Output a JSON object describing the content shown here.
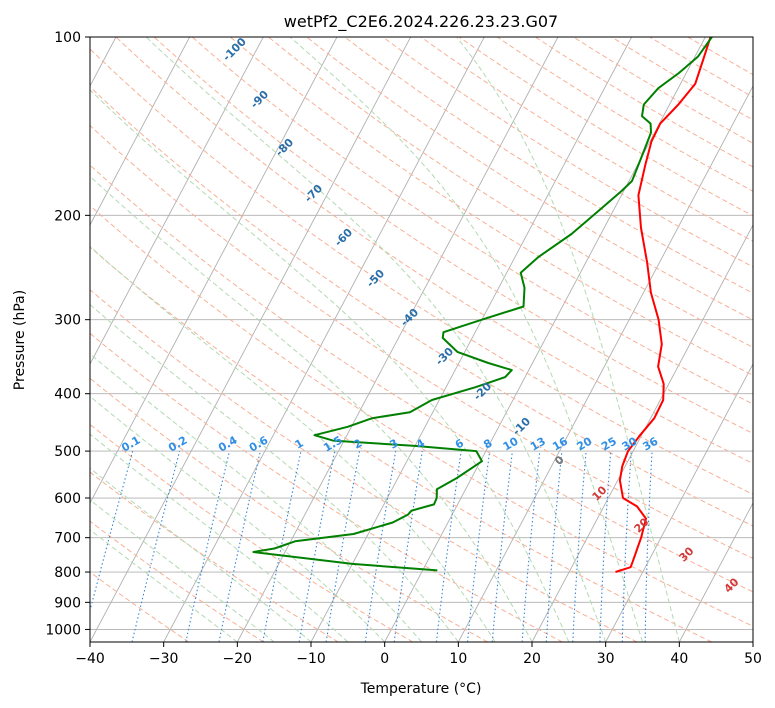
{
  "chart_data": {
    "type": "line",
    "title": "wetPf2_C2E6.2024.226.23.23.G07",
    "xlabel": "Temperature (°C)",
    "ylabel": "Pressure (hPa)",
    "xlim": [
      -40,
      50
    ],
    "ylim": [
      1050,
      100
    ],
    "y_scale": "log",
    "x_ticks": [
      "−40",
      "−30",
      "−20",
      "−10",
      "0",
      "10",
      "20",
      "30",
      "40",
      "50"
    ],
    "y_ticks": [
      "100",
      "200",
      "300",
      "400",
      "500",
      "600",
      "700",
      "800",
      "900",
      "1000"
    ],
    "grid": true,
    "series": [
      {
        "role": "temperature",
        "color": "#ff0000",
        "points": [
          {
            "p": 800,
            "t": 26.3
          },
          {
            "p": 785,
            "t": 28.0
          },
          {
            "p": 770,
            "t": 27.9
          },
          {
            "p": 700,
            "t": 27.3
          },
          {
            "p": 650,
            "t": 26.6
          },
          {
            "p": 620,
            "t": 24.5
          },
          {
            "p": 600,
            "t": 22.0
          },
          {
            "p": 560,
            "t": 20.3
          },
          {
            "p": 530,
            "t": 19.6
          },
          {
            "p": 500,
            "t": 19.3
          },
          {
            "p": 470,
            "t": 19.8
          },
          {
            "p": 440,
            "t": 20.5
          },
          {
            "p": 410,
            "t": 20.4
          },
          {
            "p": 385,
            "t": 19.3
          },
          {
            "p": 360,
            "t": 17.3
          },
          {
            "p": 330,
            "t": 16.2
          },
          {
            "p": 300,
            "t": 14.0
          },
          {
            "p": 270,
            "t": 11.0
          },
          {
            "p": 240,
            "t": 8.3
          },
          {
            "p": 210,
            "t": 5.0
          },
          {
            "p": 185,
            "t": 2.3
          },
          {
            "p": 165,
            "t": 1.1
          },
          {
            "p": 150,
            "t": 0.2
          },
          {
            "p": 140,
            "t": 0.1
          },
          {
            "p": 130,
            "t": 1.2
          },
          {
            "p": 120,
            "t": 2.0
          },
          {
            "p": 110,
            "t": 1.4
          },
          {
            "p": 100,
            "t": 0.7
          }
        ]
      },
      {
        "role": "dewpoint",
        "color": "#008000",
        "points": [
          {
            "p": 795,
            "t": 2.0
          },
          {
            "p": 790,
            "t": -1.0
          },
          {
            "p": 775,
            "t": -10.0
          },
          {
            "p": 740,
            "t": -24.3
          },
          {
            "p": 730,
            "t": -21.7
          },
          {
            "p": 710,
            "t": -19.4
          },
          {
            "p": 690,
            "t": -12.0
          },
          {
            "p": 660,
            "t": -7.5
          },
          {
            "p": 640,
            "t": -6.0
          },
          {
            "p": 630,
            "t": -5.8
          },
          {
            "p": 615,
            "t": -3.2
          },
          {
            "p": 600,
            "t": -3.3
          },
          {
            "p": 580,
            "t": -3.9
          },
          {
            "p": 555,
            "t": -2.0
          },
          {
            "p": 520,
            "t": 0.2
          },
          {
            "p": 500,
            "t": -1.3
          },
          {
            "p": 490,
            "t": -10.0
          },
          {
            "p": 480,
            "t": -21.5
          },
          {
            "p": 470,
            "t": -24.4
          },
          {
            "p": 455,
            "t": -20.5
          },
          {
            "p": 440,
            "t": -17.8
          },
          {
            "p": 430,
            "t": -13.1
          },
          {
            "p": 410,
            "t": -11.0
          },
          {
            "p": 390,
            "t": -6.0
          },
          {
            "p": 375,
            "t": -2.7
          },
          {
            "p": 365,
            "t": -2.3
          },
          {
            "p": 355,
            "t": -6.0
          },
          {
            "p": 340,
            "t": -11.0
          },
          {
            "p": 322,
            "t": -14.0
          },
          {
            "p": 315,
            "t": -14.3
          },
          {
            "p": 300,
            "t": -10.0
          },
          {
            "p": 285,
            "t": -5.3
          },
          {
            "p": 265,
            "t": -6.5
          },
          {
            "p": 250,
            "t": -8.1
          },
          {
            "p": 235,
            "t": -6.8
          },
          {
            "p": 215,
            "t": -4.0
          },
          {
            "p": 195,
            "t": -1.8
          },
          {
            "p": 182,
            "t": -0.3
          },
          {
            "p": 175,
            "t": 0.4
          },
          {
            "p": 160,
            "t": 0.0
          },
          {
            "p": 145,
            "t": -0.5
          },
          {
            "p": 140,
            "t": -1.2
          },
          {
            "p": 136,
            "t": -2.9
          },
          {
            "p": 130,
            "t": -3.5
          },
          {
            "p": 122,
            "t": -2.7
          },
          {
            "p": 115,
            "t": -1.0
          },
          {
            "p": 108,
            "t": 0.4
          },
          {
            "p": 100,
            "t": 0.9
          }
        ]
      }
    ],
    "dry_adiabat_labels": [
      "-100",
      "-90",
      "-80",
      "-70",
      "-60",
      "-50",
      "-40",
      "-30",
      "-20",
      "-10",
      "0",
      "10",
      "20",
      "30",
      "40"
    ],
    "mixing_ratio_labels": [
      "0.1",
      "0.2",
      "0.4",
      "0.6",
      "1",
      "1.5",
      "2",
      "3",
      "4",
      "6",
      "8",
      "10",
      "13",
      "16",
      "20",
      "25",
      "30",
      "36"
    ]
  }
}
